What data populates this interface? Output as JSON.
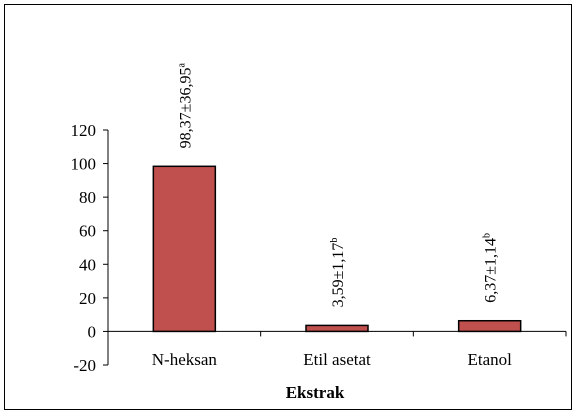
{
  "chart_data": {
    "type": "bar",
    "title": "",
    "xlabel": "Ekstrak",
    "ylabel": "",
    "categories": [
      "N-heksan",
      "Etil asetat",
      "Etanol"
    ],
    "values": [
      98.37,
      3.59,
      6.37
    ],
    "errors": [
      36.95,
      1.17,
      1.14
    ],
    "data_labels": [
      {
        "value": "98,37±36,95",
        "sup": "a"
      },
      {
        "value": "3,59±1,17",
        "sup": "b"
      },
      {
        "value": "6,37±1,14",
        "sup": "b"
      }
    ],
    "ylim": [
      -20,
      120
    ],
    "yticks": [
      "-20",
      "0",
      "20",
      "40",
      "60",
      "80",
      "100",
      "120"
    ],
    "grid": false,
    "legend": "none",
    "bar_color": "#c0504d",
    "bar_edge_color": "#000000"
  }
}
